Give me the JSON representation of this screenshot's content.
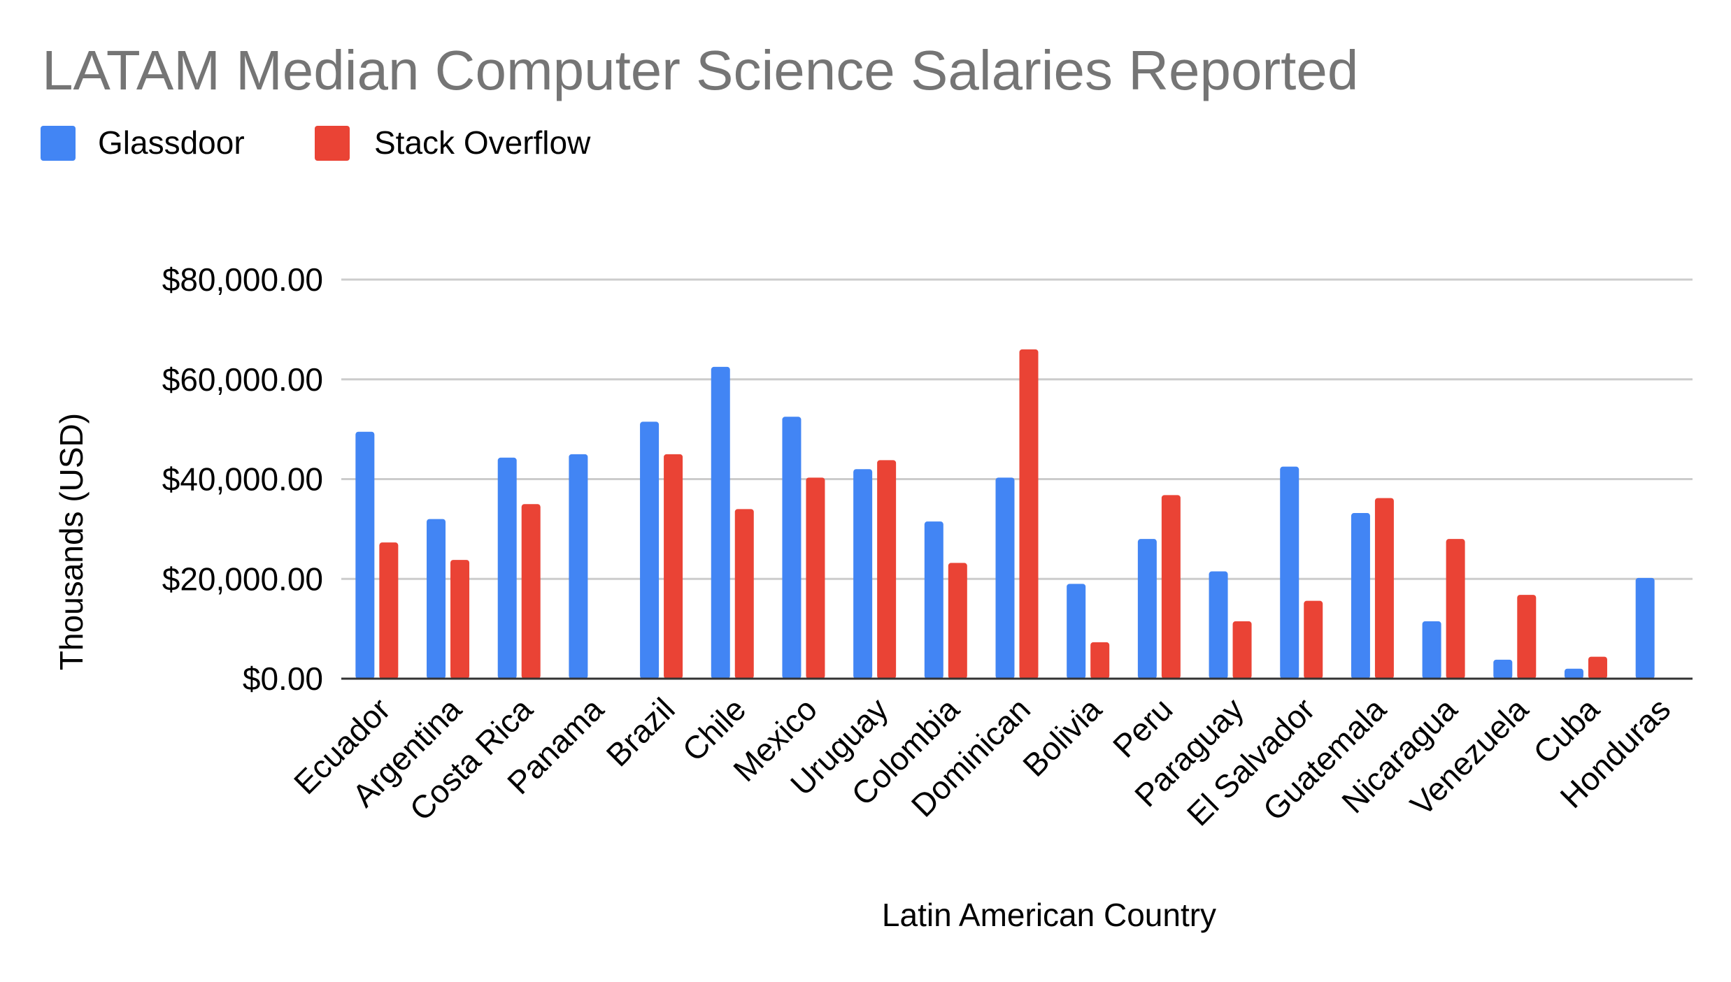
{
  "chart_data": {
    "type": "bar",
    "title": "LATAM Median Computer Science Salaries Reported",
    "xlabel": "Latin American Country",
    "ylabel": "Thousands (USD)",
    "ylim": [
      0,
      80000
    ],
    "yticks": [
      0,
      20000,
      40000,
      60000,
      80000
    ],
    "ytick_labels": [
      "$0.00",
      "$20,000.00",
      "$40,000.00",
      "$60,000.00",
      "$80,000.00"
    ],
    "grid": true,
    "legend_position": "top-left",
    "categories": [
      "Ecuador",
      "Argentina",
      "Costa Rica",
      "Panama",
      "Brazil",
      "Chile",
      "Mexico",
      "Uruguay",
      "Colombia",
      "Dominican",
      "Bolivia",
      "Peru",
      "Paraguay",
      "El Salvador",
      "Guatemala",
      "Nicaragua",
      "Venezuela",
      "Cuba",
      "Honduras"
    ],
    "series": [
      {
        "name": "Glassdoor",
        "color": "#4285f4",
        "values": [
          49500,
          32000,
          44300,
          45000,
          51500,
          62500,
          52500,
          42000,
          31500,
          40300,
          19000,
          28000,
          21500,
          42500,
          33200,
          11500,
          3800,
          2000,
          20200
        ]
      },
      {
        "name": "Stack Overflow",
        "color": "#ea4335",
        "values": [
          27300,
          23800,
          35000,
          0,
          45000,
          34000,
          40300,
          43800,
          23200,
          66000,
          7300,
          36800,
          11500,
          15600,
          36200,
          28000,
          16800,
          4400,
          0
        ]
      }
    ],
    "colors": {
      "title": "#757575",
      "text": "#000000",
      "grid": "#cccccc",
      "baseline": "#333333"
    }
  }
}
